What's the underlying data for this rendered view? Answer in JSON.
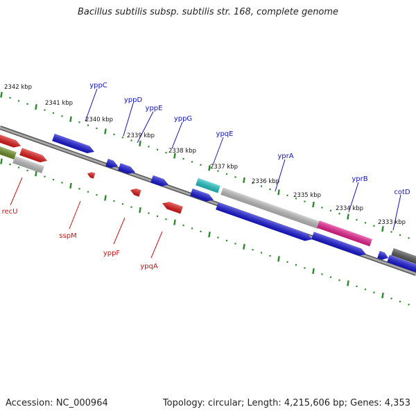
{
  "title": "Bacillus subtilis subsp. subtilis str. 168, complete genome",
  "footer": {
    "accession": "Accession: NC_000964",
    "topology": "Topology: circular; Length: 4,215,606 bp; Genes: 4,353"
  },
  "colors": {
    "forward_label": "#1010c8",
    "reverse_label": "#d01010",
    "backbone": "#8c8c8c",
    "ruler": "#2a8a2a",
    "cds_blue": "#1515d6",
    "cds_red": "#e01818",
    "cds_gray": "#bdbdbd",
    "cds_olive": "#6b8e23",
    "cds_cyan": "#22c4c4",
    "cds_pink": "#e8208e",
    "cds_dark": "#555555"
  },
  "ruler_labels": [
    "2342 kbp",
    "2341 kbp",
    "2340 kbp",
    "2339 kbp",
    "2338 kbp",
    "2337 kbp",
    "2336 kbp",
    "2335 kbp",
    "2334 kbp",
    "2333 kbp"
  ],
  "forward_genes": [
    "yppC",
    "yppD",
    "yppE",
    "yppG",
    "ypqE",
    "yprA",
    "yprB",
    "cotD"
  ],
  "reverse_genes": [
    "recU",
    "sspM",
    "yppF",
    "ypqA"
  ]
}
